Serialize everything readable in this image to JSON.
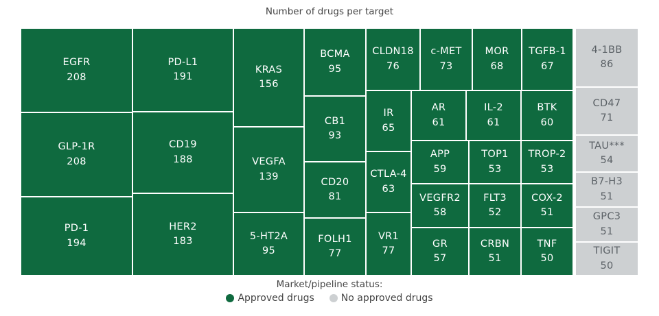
{
  "chart_data": {
    "type": "treemap",
    "title": "Number of drugs per target",
    "legend": {
      "title": "Market/pipeline status:",
      "placement": "bottom",
      "items": [
        {
          "key": "approved",
          "label": "Approved drugs",
          "color": "#0f6a3f"
        },
        {
          "key": "none",
          "label": "No approved drugs",
          "color": "#cdd0d2"
        }
      ]
    },
    "items": [
      {
        "name": "EGFR",
        "value": 208,
        "status": "approved"
      },
      {
        "name": "GLP-1R",
        "value": 208,
        "status": "approved"
      },
      {
        "name": "PD-1",
        "value": 194,
        "status": "approved"
      },
      {
        "name": "PD-L1",
        "value": 191,
        "status": "approved"
      },
      {
        "name": "CD19",
        "value": 188,
        "status": "approved"
      },
      {
        "name": "HER2",
        "value": 183,
        "status": "approved"
      },
      {
        "name": "KRAS",
        "value": 156,
        "status": "approved"
      },
      {
        "name": "VEGFA",
        "value": 139,
        "status": "approved"
      },
      {
        "name": "5-HT2A",
        "value": 95,
        "status": "approved"
      },
      {
        "name": "BCMA",
        "value": 95,
        "status": "approved"
      },
      {
        "name": "CB1",
        "value": 93,
        "status": "approved"
      },
      {
        "name": "CD20",
        "value": 81,
        "status": "approved"
      },
      {
        "name": "FOLH1",
        "value": 77,
        "status": "approved"
      },
      {
        "name": "CLDN18",
        "value": 76,
        "status": "approved"
      },
      {
        "name": "IR",
        "value": 65,
        "status": "approved"
      },
      {
        "name": "CTLA-4",
        "value": 63,
        "status": "approved"
      },
      {
        "name": "VR1",
        "value": 77,
        "status": "approved"
      },
      {
        "name": "c-MET",
        "value": 73,
        "status": "approved"
      },
      {
        "name": "MOR",
        "value": 68,
        "status": "approved"
      },
      {
        "name": "TGFB-1",
        "value": 67,
        "status": "approved"
      },
      {
        "name": "AR",
        "value": 61,
        "status": "approved"
      },
      {
        "name": "IL-2",
        "value": 61,
        "status": "approved"
      },
      {
        "name": "BTK",
        "value": 60,
        "status": "approved"
      },
      {
        "name": "APP",
        "value": 59,
        "status": "approved"
      },
      {
        "name": "TOP1",
        "value": 53,
        "status": "approved"
      },
      {
        "name": "TROP-2",
        "value": 53,
        "status": "approved"
      },
      {
        "name": "VEGFR2",
        "value": 58,
        "status": "approved"
      },
      {
        "name": "FLT3",
        "value": 52,
        "status": "approved"
      },
      {
        "name": "COX-2",
        "value": 51,
        "status": "approved"
      },
      {
        "name": "GR",
        "value": 57,
        "status": "approved"
      },
      {
        "name": "CRBN",
        "value": 51,
        "status": "approved"
      },
      {
        "name": "TNF",
        "value": 50,
        "status": "approved"
      },
      {
        "name": "4-1BB",
        "value": 86,
        "status": "none"
      },
      {
        "name": "CD47",
        "value": 71,
        "status": "none"
      },
      {
        "name": "TAU***",
        "value": 54,
        "status": "none"
      },
      {
        "name": "B7-H3",
        "value": 51,
        "status": "none"
      },
      {
        "name": "GPC3",
        "value": 51,
        "status": "none"
      },
      {
        "name": "TIGIT",
        "value": 50,
        "status": "none"
      }
    ]
  }
}
